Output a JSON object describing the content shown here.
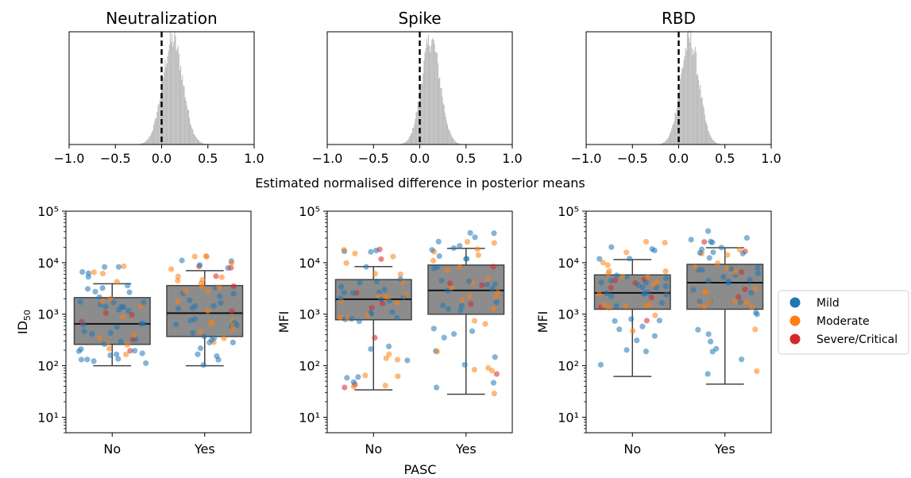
{
  "figure": {
    "shared_xlabel": "Estimated normalised difference in posterior means",
    "shared_bottom_xlabel": "PASC"
  },
  "legend": {
    "entries": [
      {
        "label": "Mild",
        "color": "#1f77b4"
      },
      {
        "label": "Moderate",
        "color": "#ff7f0e"
      },
      {
        "label": "Severe/Critical",
        "color": "#d62728"
      }
    ]
  },
  "colors": {
    "hist": "#bdbdbd",
    "box": "#8c8c8c",
    "zero_line": "#000000"
  },
  "chart_data": [
    {
      "type": "histogram",
      "title": "Neutralization",
      "xlim": [
        -1.0,
        1.0
      ],
      "xticks": [
        -1.0,
        -0.5,
        0.0,
        0.5,
        1.0
      ],
      "xtick_labels": [
        "−1.0",
        "−0.5",
        "0.0",
        "0.5",
        "1.0"
      ],
      "reference_line_x": 0.0,
      "mean": 0.12,
      "sd": 0.11
    },
    {
      "type": "histogram",
      "title": "Spike",
      "xlim": [
        -1.0,
        1.0
      ],
      "xticks": [
        -1.0,
        -0.5,
        0.0,
        0.5,
        1.0
      ],
      "xtick_labels": [
        "−1.0",
        "−0.5",
        "0.0",
        "0.5",
        "1.0"
      ],
      "reference_line_x": 0.0,
      "mean": 0.12,
      "sd": 0.1
    },
    {
      "type": "histogram",
      "title": "RBD",
      "xlim": [
        -1.0,
        1.0
      ],
      "xticks": [
        -1.0,
        -0.5,
        0.0,
        0.5,
        1.0
      ],
      "xtick_labels": [
        "−1.0",
        "−0.5",
        "0.0",
        "0.5",
        "1.0"
      ],
      "reference_line_x": 0.0,
      "mean": 0.12,
      "sd": 0.1
    },
    {
      "type": "box",
      "ylabel": "ID50",
      "yscale": "log",
      "ylim": [
        5,
        100000
      ],
      "ytick_labels": [
        "10¹",
        "10²",
        "10³",
        "10⁴",
        "10⁵"
      ],
      "categories": [
        "No",
        "Yes"
      ],
      "boxes": [
        {
          "category": "No",
          "whislo": 100,
          "q1": 260,
          "med": 650,
          "q3": 2100,
          "whishi": 3900
        },
        {
          "category": "Yes",
          "whislo": 100,
          "q1": 370,
          "med": 1050,
          "q3": 3600,
          "whishi": 7000
        }
      ]
    },
    {
      "type": "box",
      "ylabel": "MFI",
      "yscale": "log",
      "ylim": [
        5,
        100000
      ],
      "ytick_labels": [
        "10¹",
        "10²",
        "10³",
        "10⁴",
        "10⁵"
      ],
      "categories": [
        "No",
        "Yes"
      ],
      "boxes": [
        {
          "category": "No",
          "whislo": 34,
          "q1": 780,
          "med": 1950,
          "q3": 4700,
          "whishi": 8400
        },
        {
          "category": "Yes",
          "whislo": 28,
          "q1": 1000,
          "med": 2900,
          "q3": 9000,
          "whishi": 19000
        }
      ]
    },
    {
      "type": "box",
      "ylabel": "MFI",
      "yscale": "log",
      "ylim": [
        5,
        100000
      ],
      "ytick_labels": [
        "10¹",
        "10²",
        "10³",
        "10⁴",
        "10⁵"
      ],
      "categories": [
        "No",
        "Yes"
      ],
      "boxes": [
        {
          "category": "No",
          "whislo": 62,
          "q1": 1250,
          "med": 2600,
          "q3": 5800,
          "whishi": 11500
        },
        {
          "category": "Yes",
          "whislo": 44,
          "q1": 1250,
          "med": 4100,
          "q3": 9300,
          "whishi": 19500
        }
      ]
    }
  ]
}
